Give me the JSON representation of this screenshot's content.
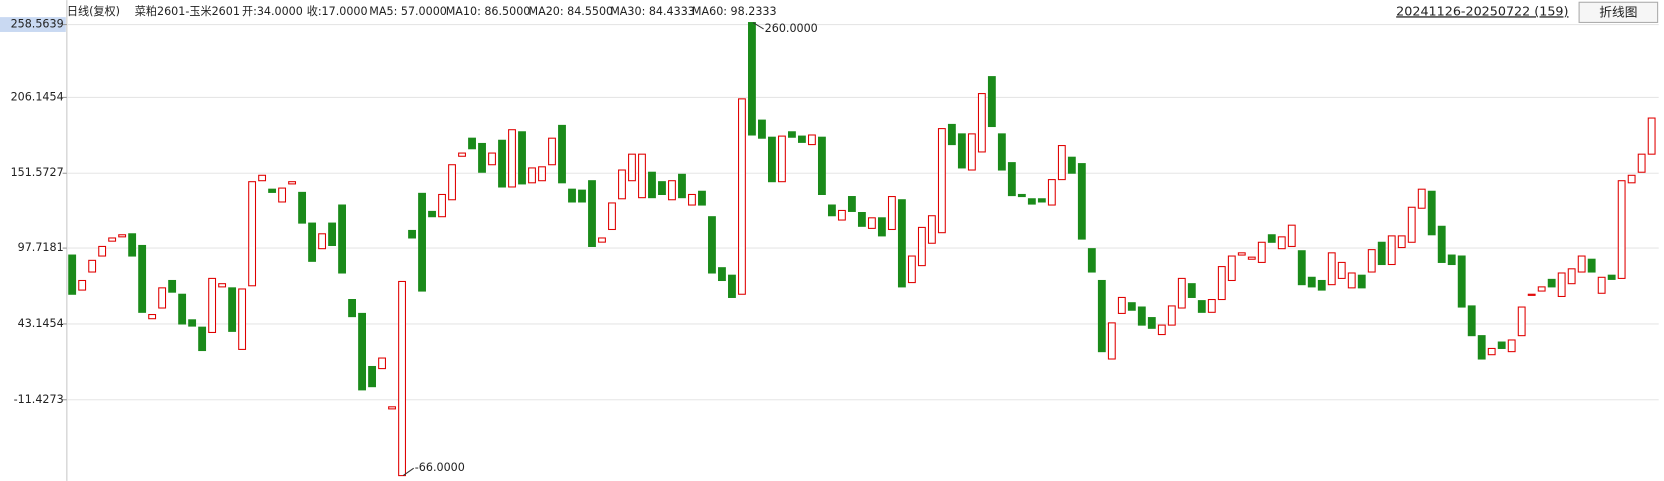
{
  "chart_data": {
    "type": "candlestick",
    "title": "日线(复权)",
    "subtitle": "菜粕2601-玉米2601",
    "indicators": [
      {
        "label": "开:34.0000",
        "color": "#1a9fe0"
      },
      {
        "label": "收:17.0000",
        "color": "#1a9fe0"
      },
      {
        "label": "MA5: 57.0000",
        "color": "#222222"
      },
      {
        "label": "MA10: 86.5000",
        "color": "#a08a10"
      },
      {
        "label": "MA20: 84.5500",
        "color": "#d0106f"
      },
      {
        "label": "MA30: 84.4333",
        "color": "#1f9a1f"
      },
      {
        "label": "MA60: 98.2333",
        "color": "#222222"
      }
    ],
    "date_range": "20241126-20250722 (159)",
    "button": "折线图",
    "up_color": "#e00000",
    "down_color": "#1a8a1a",
    "open": [
      92.7,
      67.5,
      80.5,
      92.0,
      102.7,
      105.8,
      108.0,
      99.6,
      46.9,
      54.6,
      74.4,
      64.5,
      46.1,
      40.8,
      37.0,
      69.8,
      69.1,
      24.8,
      70.6,
      146.2,
      140.1,
      130.9,
      143.9,
      137.8,
      115.7,
      97.3,
      115.7,
      128.7,
      60.7,
      50.7,
      12.5,
      11.0,
      -18.0,
      -66,
      110.4,
      137.1,
      124.1,
      120.3,
      132.5,
      163.8,
      176.8,
      173.0,
      157.7,
      175.3,
      141.7,
      181.4,
      144.7,
      146.2,
      157.7,
      186.0,
      140.1,
      139.4,
      146.2,
      102.0,
      111.1,
      133.2,
      146.2,
      134.0,
      152.3,
      145.5,
      132.5,
      150.8,
      128.7,
      138.6,
      120.3,
      83.6,
      78.2,
      64.5,
      260,
      189.8,
      177.5,
      145.5,
      181.4,
      178.3,
      172.2,
      177.5,
      128.7,
      117.9,
      134.8,
      123.3,
      111.9,
      119.5,
      111.1,
      132.5,
      72.9,
      85.1,
      101.2,
      108.8,
      186.7,
      179.9,
      153.9,
      166.9,
      221.1,
      179.9,
      159.2,
      136.3,
      133.2,
      133.2,
      128.7,
      147.0,
      163.1,
      158.5,
      97.3,
      74.4,
      17.9,
      50.7,
      58.4,
      55.3,
      47.7,
      35.5,
      42.3,
      54.6,
      72.1,
      59.9,
      51.5,
      60.7,
      74.4,
      92.7,
      89.7,
      87.4,
      107.3,
      97.3,
      98.9,
      95.8,
      76.7,
      74.4,
      71.4,
      75.9,
      69.1,
      78.2,
      80.5,
      101.9,
      85.9,
      98.1,
      101.9,
      126.4,
      138.6,
      113.4,
      92.7,
      92.0,
      56.1,
      34.7,
      21.0,
      30.1,
      23.2,
      34.7,
      63.7,
      66.8,
      75.2,
      62.9,
      72.1,
      80.5,
      89.7,
      65.2,
      78.2,
      75.9,
      144.7,
      152.3,
      165.3
    ],
    "close": [
      64.5,
      74.4,
      88.9,
      98.9,
      105.0,
      107.3,
      92.0,
      51.5,
      49.9,
      69.1,
      66.0,
      43.1,
      41.6,
      24.0,
      75.9,
      72.1,
      37.8,
      68.3,
      145.5,
      150.1,
      137.8,
      140.9,
      145.5,
      115.7,
      88.2,
      108.0,
      99.6,
      79.8,
      48.4,
      -4.3,
      -2.0,
      18.6,
      -16.5,
      73.7,
      105.0,
      66.8,
      120.3,
      136.3,
      157.7,
      166.1,
      169.2,
      152.3,
      166.1,
      141.7,
      182.9,
      143.9,
      155.4,
      156.2,
      176.8,
      144.7,
      130.9,
      130.9,
      98.9,
      105.0,
      130.2,
      153.9,
      165.3,
      165.3,
      134.0,
      136.3,
      146.2,
      134.0,
      136.3,
      128.7,
      79.8,
      74.4,
      62.2,
      205.1,
      179.1,
      176.8,
      145.5,
      178.3,
      177.5,
      173.8,
      179.1,
      136.3,
      121.0,
      124.8,
      124.1,
      113.4,
      119.5,
      106.5,
      134.8,
      69.8,
      92.0,
      112.6,
      121.0,
      183.7,
      172.2,
      155.4,
      179.9,
      208.9,
      185.2,
      153.9,
      135.5,
      134.8,
      129.4,
      130.9,
      147.0,
      171.5,
      151.6,
      104.2,
      80.5,
      23.2,
      43.9,
      62.2,
      53.0,
      42.3,
      40.0,
      42.3,
      56.1,
      75.9,
      62.2,
      51.5,
      60.7,
      84.4,
      92.0,
      94.3,
      91.2,
      101.9,
      101.9,
      105.8,
      114.2,
      71.4,
      69.8,
      67.5,
      94.3,
      87.4,
      79.8,
      69.1,
      96.6,
      85.9,
      106.5,
      106.5,
      127.1,
      140.1,
      107.3,
      87.4,
      85.9,
      55.3,
      34.7,
      17.9,
      25.5,
      25.5,
      31.6,
      55.3,
      64.5,
      69.8,
      69.8,
      79.8,
      82.8,
      92.0,
      80.5,
      76.7,
      75.2,
      146.2,
      150.1,
      165.3,
      191.3
    ],
    "annotations": [
      {
        "value": 260,
        "label": "260.0000"
      },
      {
        "value": -66,
        "label": "-66.0000"
      }
    ],
    "ylim": [
      -67.5,
      262.4
    ],
    "yticks": [
      258.5639,
      206.1454,
      151.5727,
      97.7181,
      43.1454,
      -11.4273
    ],
    "grid": true
  }
}
